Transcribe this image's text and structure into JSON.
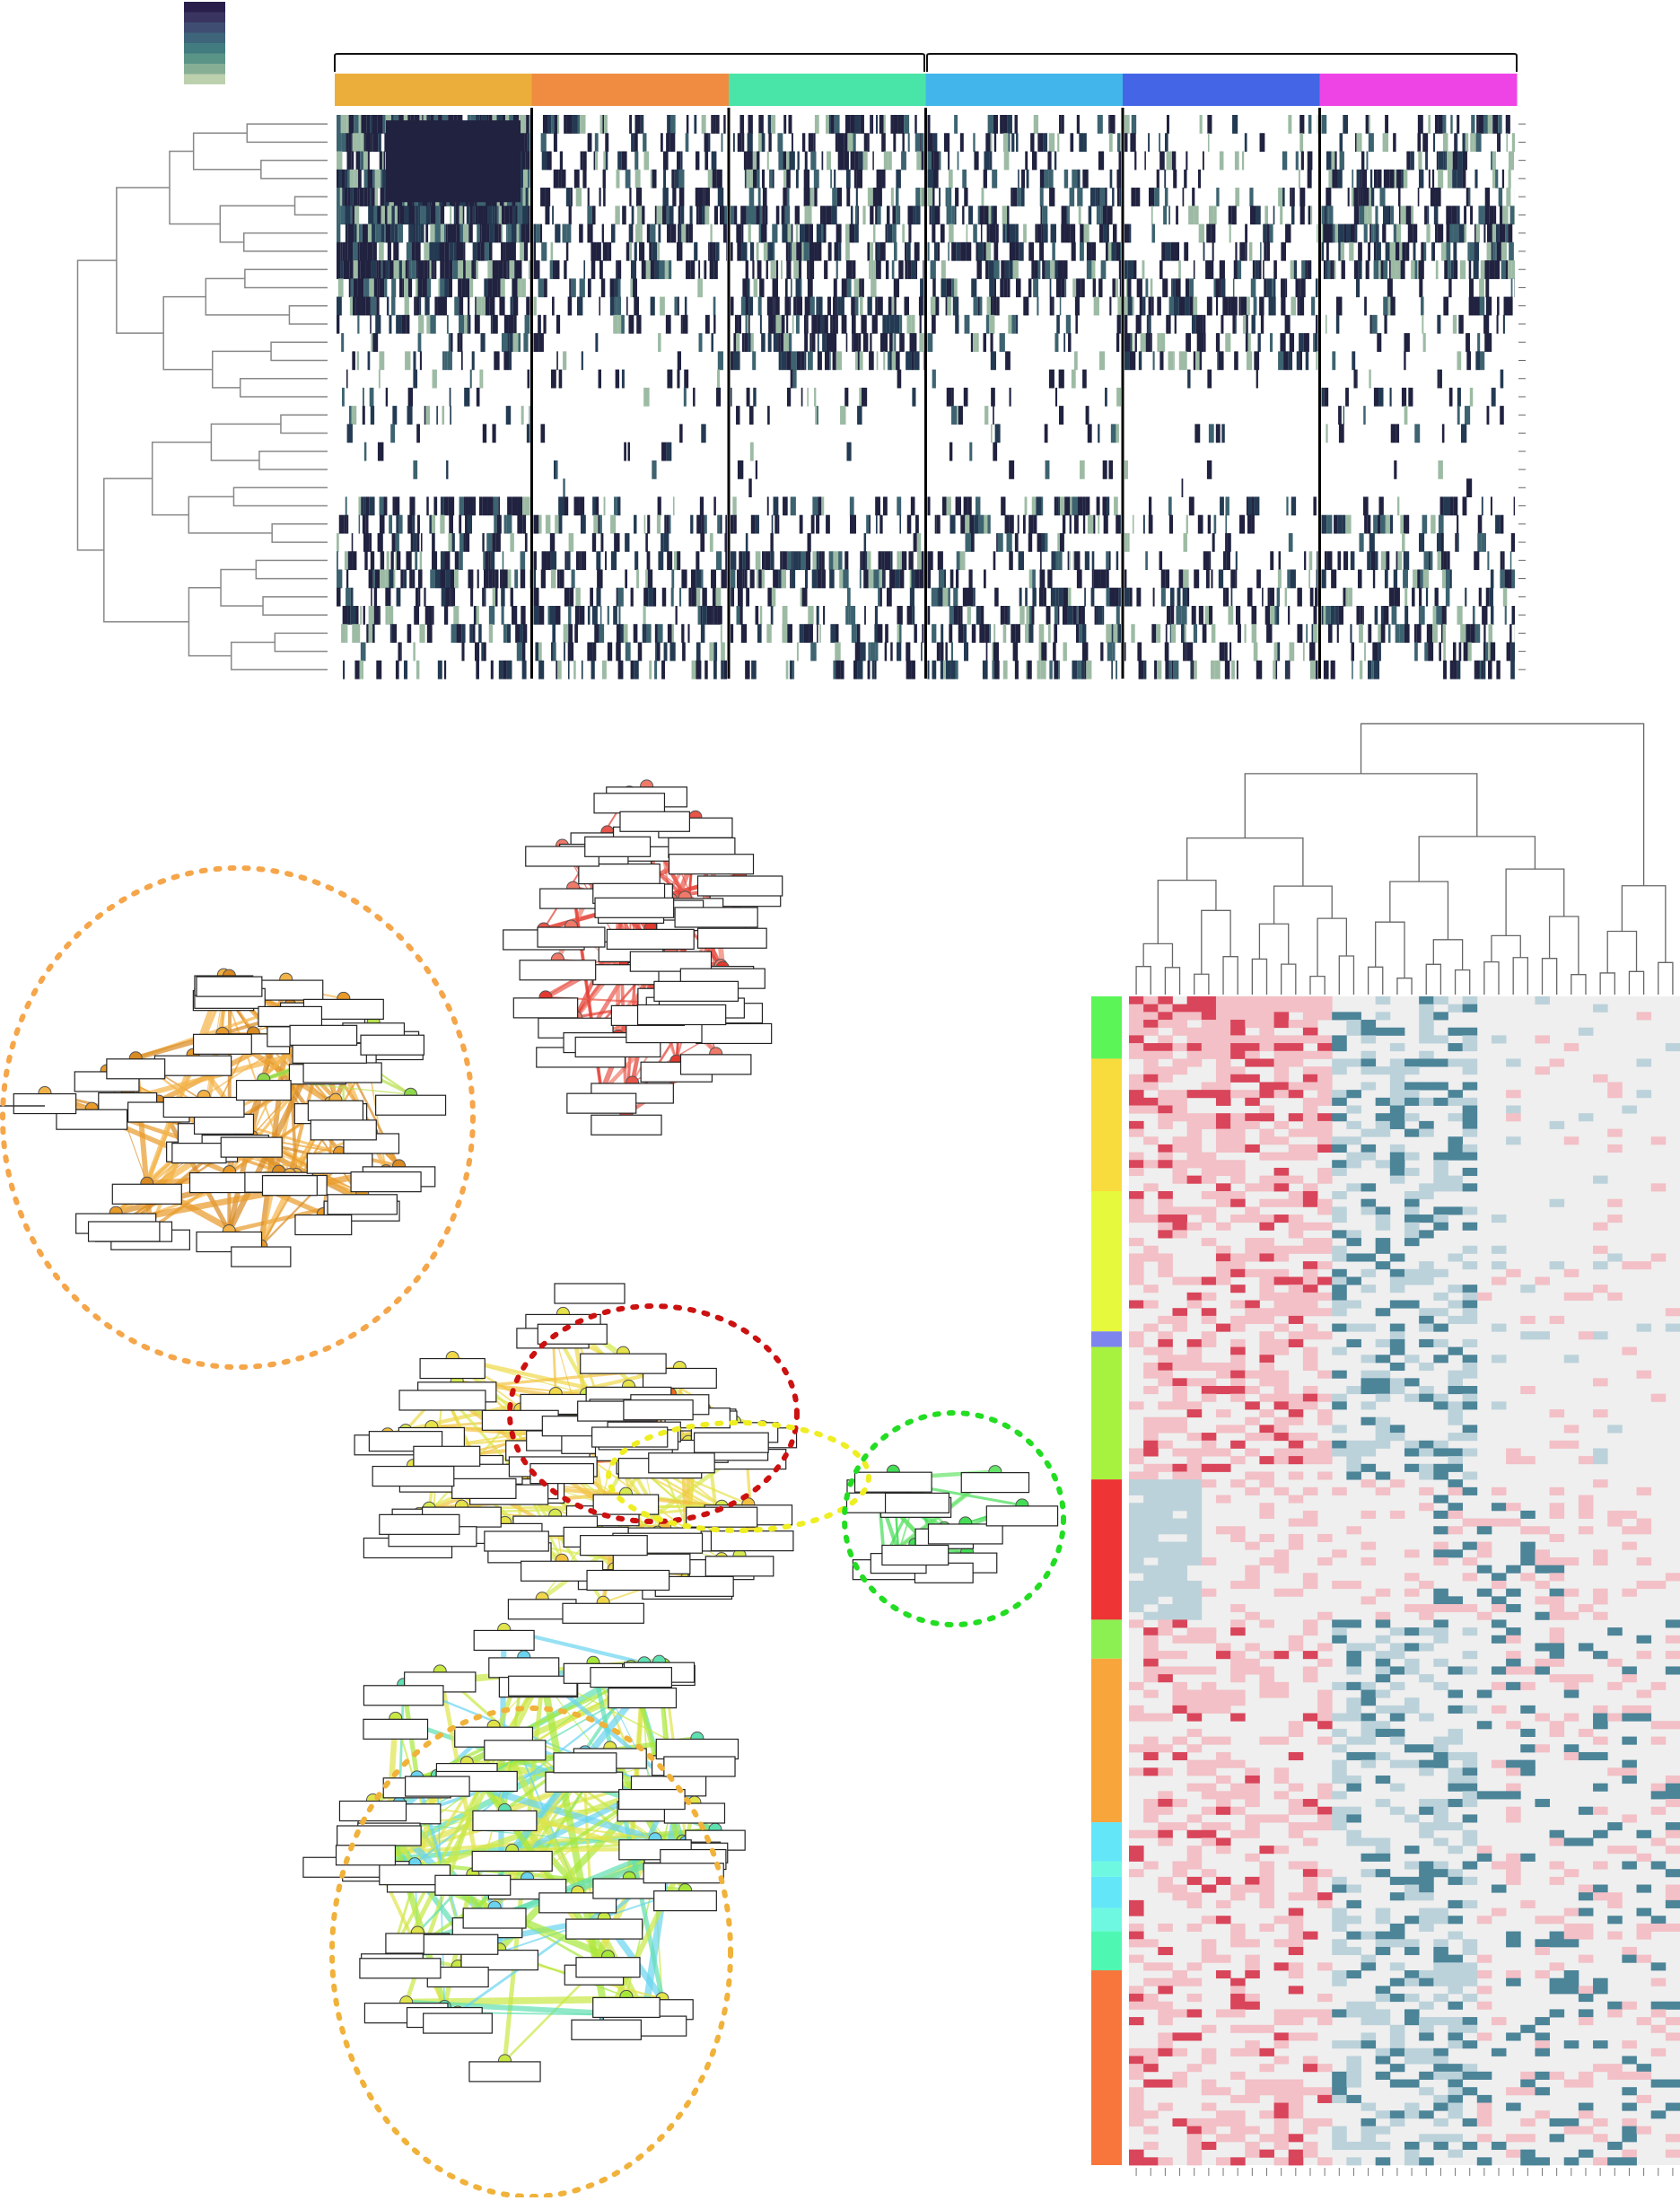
{
  "figure": {
    "panels": [
      {
        "id": "top-heatmap",
        "kind": "binary-heatmap-with-row-dendrogram",
        "row_count": 31,
        "column_groups": 6,
        "brackets": 2
      },
      {
        "id": "network",
        "kind": "node-link-network",
        "highlighted_clusters": 6
      },
      {
        "id": "right-heatmap",
        "kind": "heatmap-with-column-dendrogram",
        "row_color_bar": true
      }
    ],
    "text_labels": [],
    "colors": {
      "legend_scale": [
        "#2a1f4a",
        "#3a3560",
        "#3f4d72",
        "#3e6579",
        "#427c80",
        "#5a9487",
        "#86ae95",
        "#bcd0ae"
      ],
      "column_groups": [
        "#ecae3a",
        "#f08c42",
        "#49e5a8",
        "#42b6ea",
        "#4466e6",
        "#ee44e6"
      ],
      "heat_dark": "#20223f",
      "heat_mid": "#3d6370",
      "heat_light": "#9dbba4",
      "network_clusters": {
        "orange": "#f5a64a",
        "red": "#e8554a",
        "dark_red": "#cc1111",
        "yellow": "#eeee22",
        "green": "#22dd22",
        "lower_orange": "#f0b23a"
      },
      "node_fill": "#d8d84a",
      "label_box_border": "#222222",
      "right_heatmap": {
        "background": "#efefef",
        "pink": "#f2c0c6",
        "red": "#d9455a",
        "blue_light": "#bcd2da",
        "blue": "#4c8498"
      },
      "row_bar": [
        "#5bf558",
        "#f8db3c",
        "#e6f93c",
        "#7d84ee",
        "#a7f23e",
        "#ee3434",
        "#8cf052",
        "#f8a53c",
        "#62e6f8",
        "#6ef8e2",
        "#4ef8b2",
        "#f8763c"
      ]
    }
  }
}
